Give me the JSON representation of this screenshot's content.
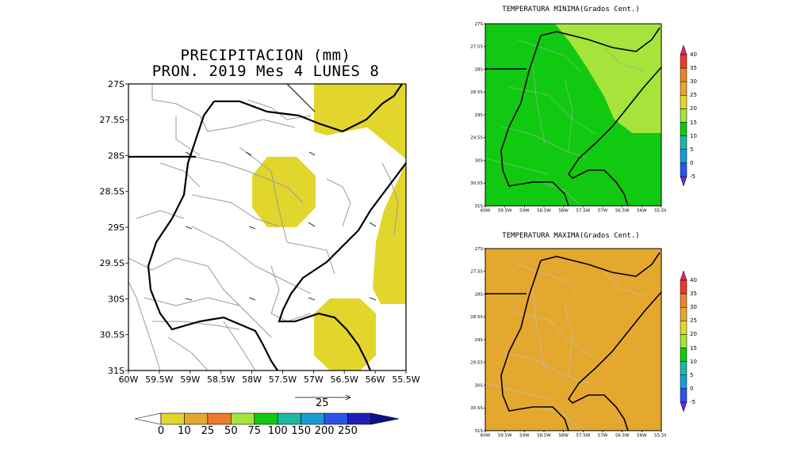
{
  "main": {
    "title_line1": "PRECIPITACION (mm)",
    "title_line2": "PRON. 2019 Mes 4 LUNES 8",
    "y_ticks": [
      "27S",
      "27.5S",
      "28S",
      "28.5S",
      "29S",
      "29.5S",
      "30S",
      "30.5S",
      "31S"
    ],
    "x_ticks": [
      "60W",
      "59.5W",
      "59W",
      "58.5W",
      "58W",
      "57.5W",
      "57W",
      "56.5W",
      "56W",
      "55.5W"
    ],
    "vector_scale_label": "25",
    "colorbar": {
      "labels": [
        "0",
        "10",
        "25",
        "50",
        "75",
        "100",
        "150",
        "200",
        "250"
      ],
      "colors": [
        "#ffffff",
        "#e2d62d",
        "#e5a82e",
        "#ee7b2b",
        "#a6e33b",
        "#12c912",
        "#1bb9a3",
        "#1a9bd8",
        "#2a55e8",
        "#1f1fb8",
        "#101088"
      ]
    }
  },
  "tmin": {
    "title": "TEMPERATURA MINIMA(Grados Cent.)",
    "y_ticks": [
      "27S",
      "27.5S",
      "28S",
      "28.5S",
      "29S",
      "29.5S",
      "30S",
      "30.5S",
      "31S"
    ],
    "x_ticks": [
      "60W",
      "59.5W",
      "59W",
      "58.5W",
      "58W",
      "57.5W",
      "57W",
      "56.5W",
      "56W",
      "55.5W"
    ],
    "fill_main": "#12c912",
    "fill_secondary": "#a6e33b"
  },
  "tmax": {
    "title": "TEMPERATURA MAXIMA(Grados Cent.)",
    "y_ticks": [
      "27S",
      "27.5S",
      "28S",
      "28.5S",
      "29S",
      "29.5S",
      "30S",
      "30.5S",
      "31S"
    ],
    "x_ticks": [
      "60W",
      "59.5W",
      "59W",
      "58.5W",
      "58W",
      "57.5W",
      "57W",
      "56.5W",
      "56W",
      "55.5W"
    ],
    "fill_main": "#e5a82e"
  },
  "temp_colorbar": {
    "labels": [
      "40",
      "35",
      "30",
      "25",
      "20",
      "15",
      "10",
      "5",
      "0",
      "-5"
    ],
    "colors": [
      "#e8246e",
      "#e83a2a",
      "#e8852a",
      "#e5a82e",
      "#e2d62d",
      "#a6e33b",
      "#12c912",
      "#1bb9a3",
      "#1a9bd8",
      "#2a55e8",
      "#6a2ae0"
    ]
  }
}
